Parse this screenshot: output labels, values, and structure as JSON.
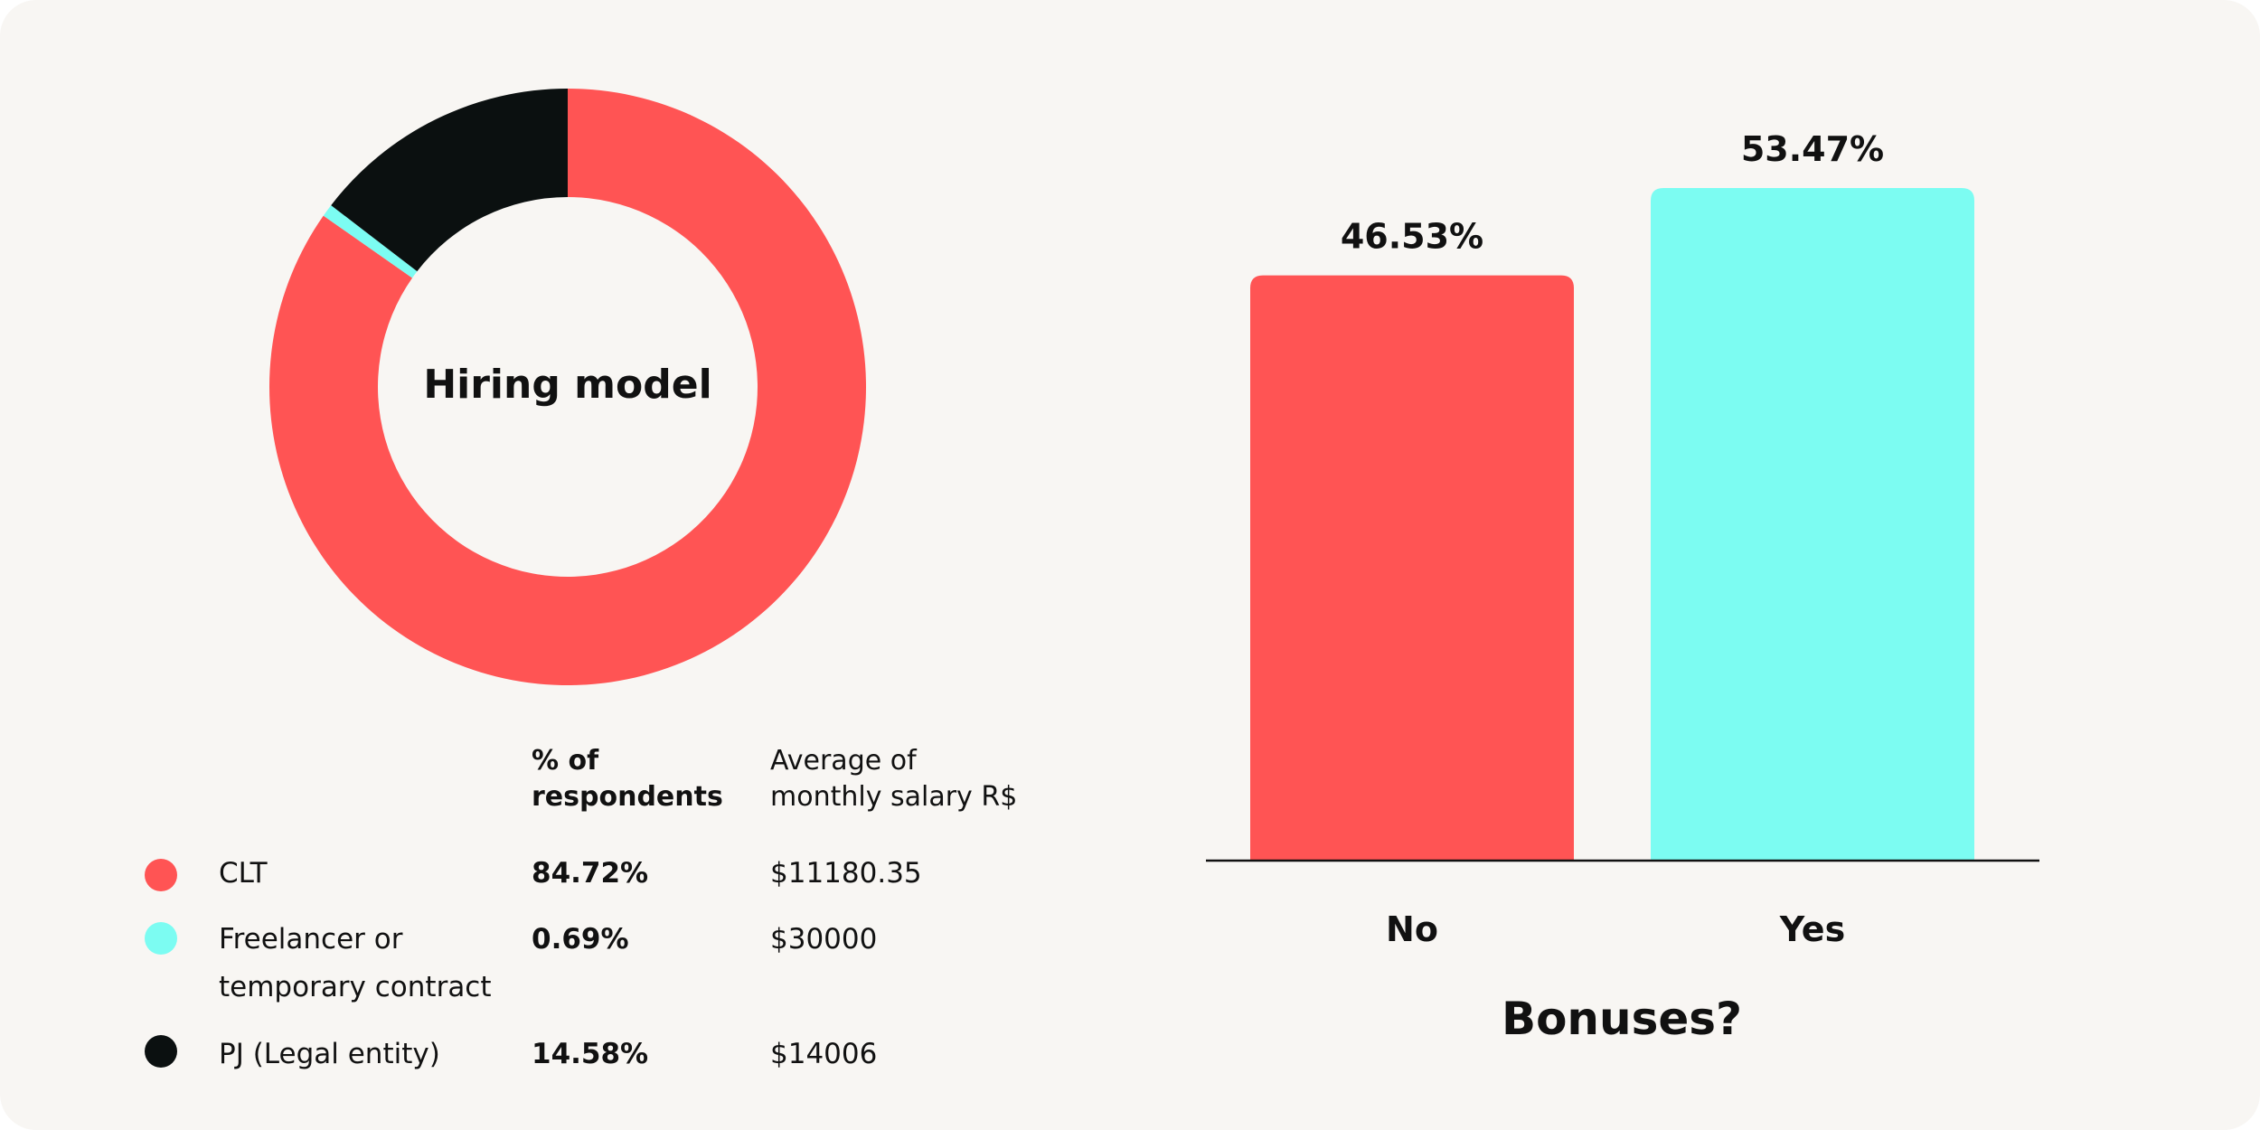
{
  "colors": {
    "background": "#f8f6f3",
    "coral": "#ff5454",
    "cyan": "#7cfcf2",
    "black": "#0b1010"
  },
  "chart_data": [
    {
      "type": "pie",
      "center_label": "Hiring model",
      "slices": [
        {
          "label": "CLT",
          "value": 84.72,
          "color": "#ff5454"
        },
        {
          "label": "Freelancer or temporary contract",
          "value": 0.69,
          "color": "#7cfcf2"
        },
        {
          "label": "PJ (Legal entity)",
          "value": 14.58,
          "color": "#0b1010"
        }
      ]
    },
    {
      "type": "bar",
      "title": "Bonuses?",
      "categories": [
        "No",
        "Yes"
      ],
      "values": [
        46.53,
        53.47
      ],
      "value_labels": [
        "46.53%",
        "53.47%"
      ],
      "colors": [
        "#ff5454",
        "#7cfcf2"
      ],
      "ylim": [
        0,
        53.47
      ],
      "grid": false
    }
  ],
  "table": {
    "col_pct_header": "% of respondents",
    "col_pct_header_lines": [
      "% of",
      "respondents"
    ],
    "col_salary_header": "Average of monthly salary R$",
    "col_salary_header_lines": [
      "Average of",
      "monthly salary R$"
    ],
    "rows": [
      {
        "name": "CLT",
        "name_lines": [
          "CLT"
        ],
        "pct": "84.72%",
        "salary": "$11180.35",
        "color": "#ff5454"
      },
      {
        "name": "Freelancer or temporary contract",
        "name_lines": [
          "Freelancer or",
          "temporary contract"
        ],
        "pct": "0.69%",
        "salary": "$30000",
        "color": "#7cfcf2"
      },
      {
        "name": "PJ (Legal entity)",
        "name_lines": [
          "PJ (Legal entity)"
        ],
        "pct": "14.58%",
        "salary": "$14006",
        "color": "#0b1010"
      }
    ]
  }
}
